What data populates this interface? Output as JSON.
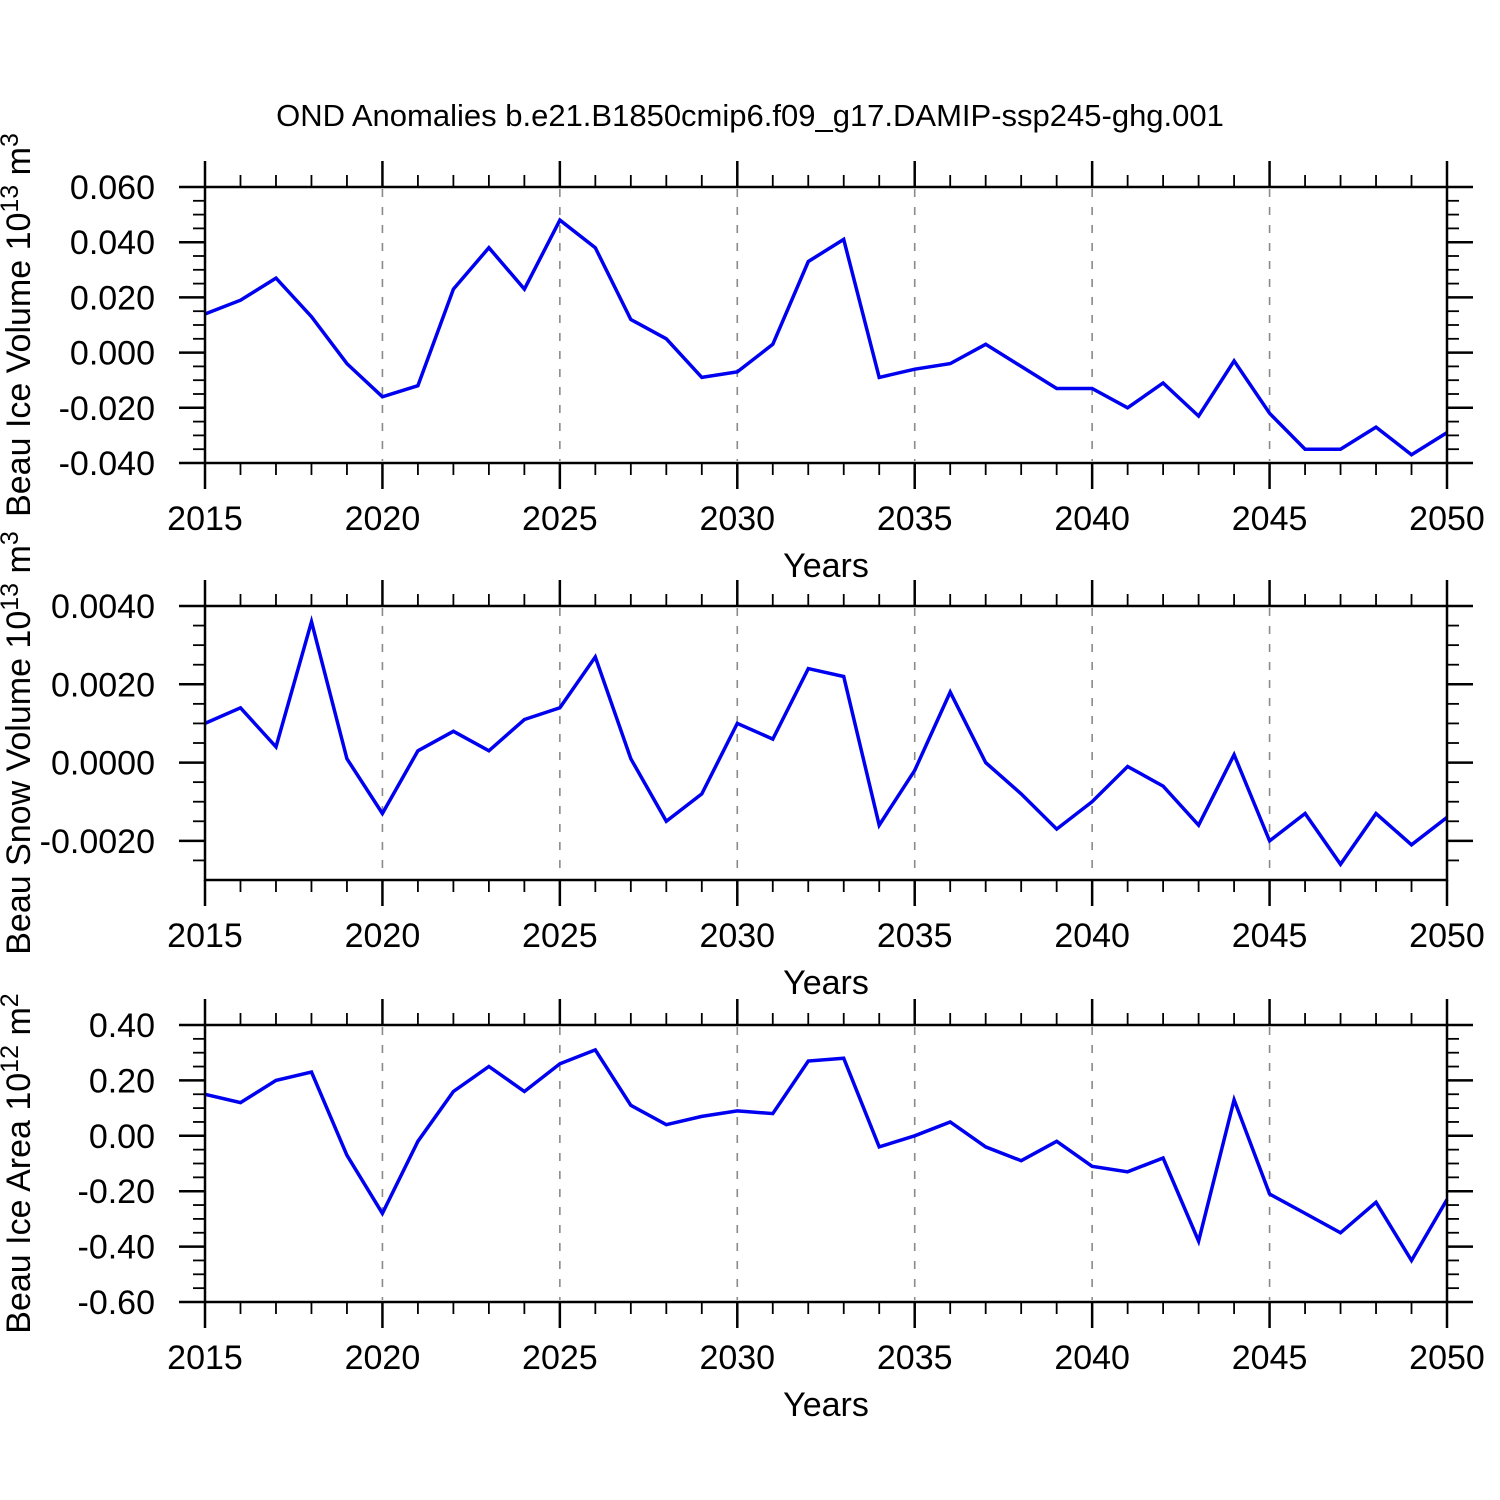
{
  "title": "OND Anomalies b.e21.B1850cmip6.f09_g17.DAMIP-ssp245-ghg.001",
  "colors": {
    "line": "#0000f0",
    "grid": "#8a8a8a",
    "axis": "#000000",
    "background": "#ffffff"
  },
  "chart_data": [
    {
      "id": "beau-ice-volume",
      "type": "line",
      "xlabel": "Years",
      "ylabel_parts": [
        {
          "t": "Beau Ice Volume 10"
        },
        {
          "t": "13",
          "sup": true
        },
        {
          "t": " m"
        },
        {
          "t": "3",
          "sup": true
        }
      ],
      "x": [
        2015,
        2016,
        2017,
        2018,
        2019,
        2020,
        2021,
        2022,
        2023,
        2024,
        2025,
        2026,
        2027,
        2028,
        2029,
        2030,
        2031,
        2032,
        2033,
        2034,
        2035,
        2036,
        2037,
        2038,
        2039,
        2040,
        2041,
        2042,
        2043,
        2044,
        2045,
        2046,
        2047,
        2048,
        2049,
        2050
      ],
      "values": [
        0.014,
        0.019,
        0.027,
        0.013,
        -0.004,
        -0.016,
        -0.012,
        0.023,
        0.038,
        0.023,
        0.048,
        0.038,
        0.012,
        0.005,
        -0.009,
        -0.007,
        0.003,
        0.033,
        0.041,
        -0.009,
        -0.006,
        -0.004,
        0.003,
        -0.005,
        -0.013,
        -0.013,
        -0.02,
        -0.011,
        -0.023,
        -0.003,
        -0.022,
        -0.035,
        -0.035,
        -0.027,
        -0.037,
        -0.029
      ],
      "ylim": [
        -0.04,
        0.06
      ],
      "yticks": {
        "values": [
          0.06,
          0.04,
          0.02,
          0.0,
          -0.02,
          -0.04
        ],
        "labels": [
          "0.060",
          "0.040",
          "0.020",
          "0.000",
          "-0.020",
          "-0.040"
        ],
        "minor_step": 0.005
      },
      "xticks": {
        "values": [
          2015,
          2020,
          2025,
          2030,
          2035,
          2040,
          2045,
          2050
        ],
        "labels": [
          "2015",
          "2020",
          "2025",
          "2030",
          "2035",
          "2040",
          "2045",
          "2050"
        ],
        "minor_step": 1
      },
      "grid_x": [
        2020,
        2025,
        2030,
        2035,
        2040,
        2045
      ],
      "grid": true,
      "legend": "none"
    },
    {
      "id": "beau-snow-volume",
      "type": "line",
      "xlabel": "Years",
      "ylabel_parts": [
        {
          "t": "Beau Snow Volume 10"
        },
        {
          "t": "13",
          "sup": true
        },
        {
          "t": " m"
        },
        {
          "t": "3",
          "sup": true
        }
      ],
      "x": [
        2015,
        2016,
        2017,
        2018,
        2019,
        2020,
        2021,
        2022,
        2023,
        2024,
        2025,
        2026,
        2027,
        2028,
        2029,
        2030,
        2031,
        2032,
        2033,
        2034,
        2035,
        2036,
        2037,
        2038,
        2039,
        2040,
        2041,
        2042,
        2043,
        2044,
        2045,
        2046,
        2047,
        2048,
        2049,
        2050
      ],
      "values": [
        0.001,
        0.0014,
        0.0004,
        0.0036,
        0.0001,
        -0.0013,
        0.0003,
        0.0008,
        0.0003,
        0.0011,
        0.0014,
        0.0027,
        0.0001,
        -0.0015,
        -0.0008,
        0.001,
        0.0006,
        0.0024,
        0.0022,
        -0.0016,
        -0.0002,
        0.0018,
        0.0,
        -0.0008,
        -0.0017,
        -0.001,
        -0.0001,
        -0.0006,
        -0.0016,
        0.0002,
        -0.002,
        -0.0013,
        -0.0026,
        -0.0013,
        -0.0021,
        -0.0014
      ],
      "ylim": [
        -0.003,
        0.004
      ],
      "yticks": {
        "values": [
          0.004,
          0.002,
          0.0,
          -0.002
        ],
        "labels": [
          "0.0040",
          "0.0020",
          "0.0000",
          "-0.0020"
        ],
        "minor_step": 0.0005
      },
      "xticks": {
        "values": [
          2015,
          2020,
          2025,
          2030,
          2035,
          2040,
          2045,
          2050
        ],
        "labels": [
          "2015",
          "2020",
          "2025",
          "2030",
          "2035",
          "2040",
          "2045",
          "2050"
        ],
        "minor_step": 1
      },
      "grid_x": [
        2020,
        2025,
        2030,
        2035,
        2040,
        2045
      ],
      "grid": true,
      "legend": "none"
    },
    {
      "id": "beau-ice-area",
      "type": "line",
      "xlabel": "Years",
      "ylabel_parts": [
        {
          "t": "Beau Ice Area 10"
        },
        {
          "t": "12",
          "sup": true
        },
        {
          "t": " m"
        },
        {
          "t": "2",
          "sup": true
        }
      ],
      "x": [
        2015,
        2016,
        2017,
        2018,
        2019,
        2020,
        2021,
        2022,
        2023,
        2024,
        2025,
        2026,
        2027,
        2028,
        2029,
        2030,
        2031,
        2032,
        2033,
        2034,
        2035,
        2036,
        2037,
        2038,
        2039,
        2040,
        2041,
        2042,
        2043,
        2044,
        2045,
        2046,
        2047,
        2048,
        2049,
        2050
      ],
      "values": [
        0.15,
        0.12,
        0.2,
        0.23,
        -0.07,
        -0.28,
        -0.02,
        0.16,
        0.25,
        0.16,
        0.26,
        0.31,
        0.11,
        0.04,
        0.07,
        0.09,
        0.08,
        0.27,
        0.28,
        -0.04,
        0.0,
        0.05,
        -0.04,
        -0.09,
        -0.02,
        -0.11,
        -0.13,
        -0.08,
        -0.38,
        0.13,
        -0.21,
        -0.28,
        -0.35,
        -0.24,
        -0.45,
        -0.23
      ],
      "ylim": [
        -0.6,
        0.4
      ],
      "yticks": {
        "values": [
          0.4,
          0.2,
          0.0,
          -0.2,
          -0.4,
          -0.6
        ],
        "labels": [
          "0.40",
          "0.20",
          "0.00",
          "-0.20",
          "-0.40",
          "-0.60"
        ],
        "minor_step": 0.05
      },
      "xticks": {
        "values": [
          2015,
          2020,
          2025,
          2030,
          2035,
          2040,
          2045,
          2050
        ],
        "labels": [
          "2015",
          "2020",
          "2025",
          "2030",
          "2035",
          "2040",
          "2045",
          "2050"
        ],
        "minor_step": 1
      },
      "grid_x": [
        2020,
        2025,
        2030,
        2035,
        2040,
        2045
      ],
      "grid": true,
      "legend": "none"
    }
  ]
}
